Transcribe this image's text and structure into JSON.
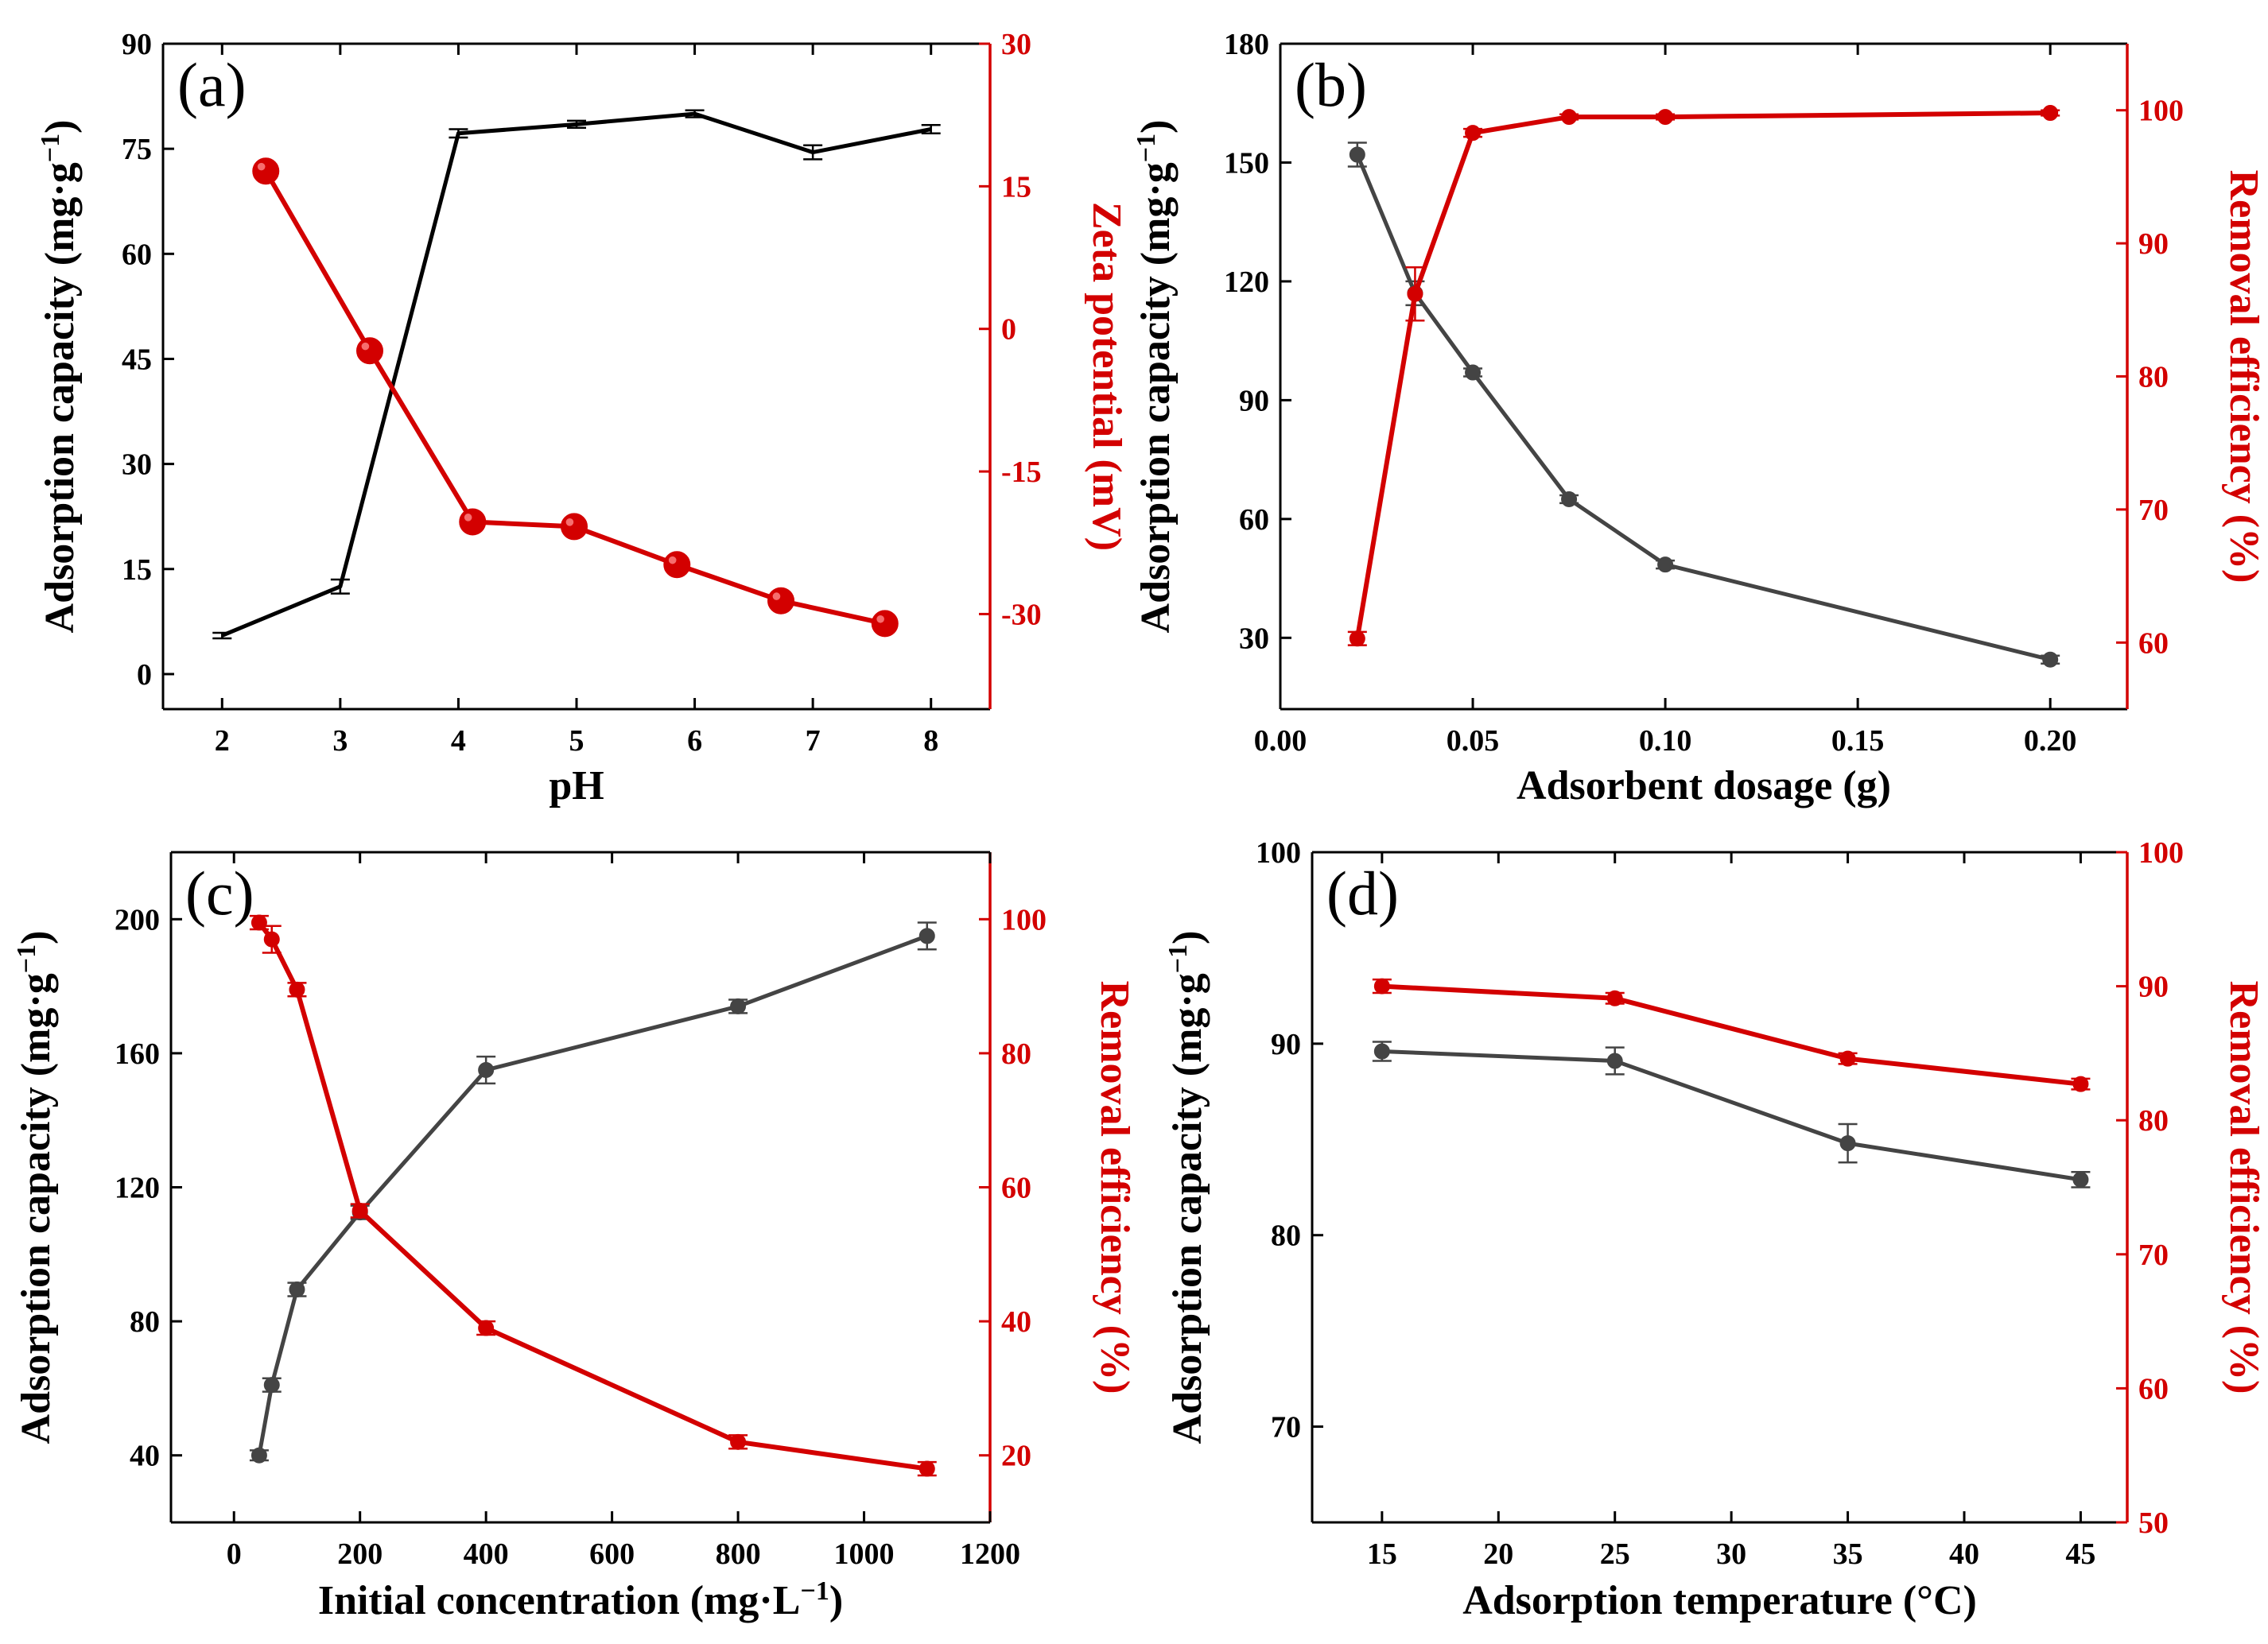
{
  "figure": {
    "panels": [
      "a",
      "b",
      "c",
      "d"
    ]
  },
  "colors": {
    "left_series": "#000000",
    "left_series_grey": "#444444",
    "right_series": "#d30000",
    "axis": "#000000"
  },
  "chart_data": [
    {
      "id": "a",
      "panel_label": "(a)",
      "type": "line",
      "xlabel": "pH",
      "ylabel": "Adsorption capacity (mg·g⁻¹)",
      "ylabel_main": "Adsorption capacity (mg·g",
      "ylabel_sup": "−1",
      "ylabel_tail": ")",
      "y2label": "Zeta potential (mV)",
      "xlim": [
        1.5,
        8.5
      ],
      "ylim": [
        -5,
        90
      ],
      "y2lim": [
        -40,
        30
      ],
      "xticks": [
        2,
        3,
        4,
        5,
        6,
        7,
        8
      ],
      "yticks": [
        0,
        15,
        30,
        45,
        60,
        75,
        90
      ],
      "y2ticks": [
        -30,
        -15,
        0,
        15,
        30
      ],
      "series": [
        {
          "name": "Adsorption capacity",
          "axis": "left",
          "color": "#000000",
          "marker": "errbar",
          "markersize": 0,
          "x": [
            2,
            3,
            4,
            5,
            6,
            7,
            8
          ],
          "y": [
            5.5,
            12.5,
            77.2,
            78.5,
            80.0,
            74.5,
            77.8
          ],
          "err": [
            0.4,
            1.0,
            0.6,
            0.5,
            0.5,
            1.0,
            0.6
          ]
        },
        {
          "name": "Zeta potential",
          "axis": "right",
          "color": "#d30000",
          "marker": "circle",
          "markersize": 16,
          "x": [
            2.37,
            3.25,
            4.12,
            4.98,
            5.85,
            6.73,
            7.61
          ],
          "y": [
            16.6,
            -2.3,
            -20.3,
            -20.8,
            -24.8,
            -28.6,
            -31.0
          ],
          "err": [
            0,
            0,
            0,
            0,
            0,
            0,
            0
          ]
        }
      ]
    },
    {
      "id": "b",
      "panel_label": "(b)",
      "type": "line",
      "xlabel": "Adsorbent dosage (g)",
      "ylabel": "Adsorption capacity (mg·g⁻¹)",
      "ylabel_main": "Adsorption capacity (mg·g",
      "ylabel_sup": "−1",
      "ylabel_tail": ")",
      "y2label": "Removal efficiency (%)",
      "xlim": [
        0,
        0.22
      ],
      "ylim": [
        12,
        180
      ],
      "y2lim": [
        55,
        105
      ],
      "xticks": [
        "0.00",
        "0.05",
        "0.10",
        "0.15",
        "0.20"
      ],
      "yticks": [
        30,
        60,
        90,
        120,
        150,
        180
      ],
      "y2ticks": [
        60,
        70,
        80,
        90,
        100
      ],
      "series": [
        {
          "name": "Adsorption capacity",
          "axis": "left",
          "color": "#444444",
          "marker": "circle",
          "markersize": 9,
          "x": [
            0.02,
            0.035,
            0.05,
            0.075,
            0.1,
            0.2
          ],
          "y": [
            152,
            117,
            97,
            65,
            48.5,
            24.5
          ],
          "err": [
            3,
            3,
            1,
            1,
            1,
            1
          ]
        },
        {
          "name": "Removal efficiency",
          "axis": "right",
          "color": "#d30000",
          "marker": "circle",
          "markersize": 9,
          "x": [
            0.02,
            0.035,
            0.05,
            0.075,
            0.1,
            0.2
          ],
          "y": [
            60.3,
            86.2,
            98.3,
            99.5,
            99.5,
            99.8
          ],
          "err": [
            0.5,
            2.0,
            0.3,
            0.2,
            0.2,
            0.2
          ]
        }
      ]
    },
    {
      "id": "c",
      "panel_label": "(c)",
      "type": "line",
      "xlabel": "Initial concentration (mg·L⁻¹)",
      "xlabel_main": "Initial concentration (mg·L",
      "xlabel_sup": "−1",
      "xlabel_tail": ")",
      "ylabel": "Adsorption capacity (mg·g⁻¹)",
      "ylabel_main": "Adsorption capacity (mg·g",
      "ylabel_sup": "−1",
      "ylabel_tail": ")",
      "y2label": "Removal efficiency (%)",
      "xlim": [
        -100,
        1200
      ],
      "ylim": [
        20,
        220
      ],
      "y2lim": [
        10,
        110
      ],
      "xticks": [
        0,
        200,
        400,
        600,
        800,
        1000,
        1200
      ],
      "yticks": [
        40,
        80,
        120,
        160,
        200
      ],
      "y2ticks": [
        20,
        40,
        60,
        80,
        100
      ],
      "series": [
        {
          "name": "Adsorption capacity",
          "axis": "left",
          "color": "#444444",
          "marker": "circle",
          "markersize": 9,
          "x": [
            40,
            60,
            100,
            200,
            400,
            800,
            1100
          ],
          "y": [
            40,
            61,
            89.5,
            112.5,
            155,
            174,
            195
          ],
          "err": [
            1.5,
            2,
            2,
            2,
            4,
            2,
            4
          ]
        },
        {
          "name": "Removal efficiency",
          "axis": "right",
          "color": "#d30000",
          "marker": "circle",
          "markersize": 9,
          "x": [
            40,
            60,
            100,
            200,
            400,
            800,
            1100
          ],
          "y": [
            99.5,
            97.0,
            89.5,
            56.5,
            39.0,
            22.0,
            18.0
          ],
          "err": [
            1,
            2,
            1,
            1,
            1,
            1,
            1
          ]
        }
      ]
    },
    {
      "id": "d",
      "panel_label": "(d)",
      "type": "line",
      "xlabel": "Adsorption temperature (°C)",
      "ylabel": "Adsorption capacity (mg·g⁻¹)",
      "ylabel_main": "Adsorption capacity (mg·g",
      "ylabel_sup": "−1",
      "ylabel_tail": ")",
      "y2label": "Removal efficiency (%)",
      "xlim": [
        12,
        47
      ],
      "ylim": [
        65,
        100
      ],
      "y2lim": [
        50,
        100
      ],
      "xticks": [
        15,
        20,
        25,
        30,
        35,
        40,
        45
      ],
      "yticks": [
        70,
        80,
        90,
        100
      ],
      "y2ticks": [
        50,
        60,
        70,
        80,
        90,
        100
      ],
      "series": [
        {
          "name": "Adsorption capacity",
          "axis": "left",
          "color": "#444444",
          "marker": "circle",
          "markersize": 9,
          "x": [
            15,
            25,
            35,
            45
          ],
          "y": [
            89.6,
            89.1,
            84.8,
            82.9
          ],
          "err": [
            0.5,
            0.7,
            1.0,
            0.4
          ]
        },
        {
          "name": "Removal efficiency",
          "axis": "right",
          "color": "#d30000",
          "marker": "circle",
          "markersize": 9,
          "x": [
            15,
            25,
            35,
            45
          ],
          "y": [
            90.0,
            89.1,
            84.6,
            82.7
          ],
          "err": [
            0.5,
            0.4,
            0.4,
            0.4
          ]
        }
      ]
    }
  ]
}
